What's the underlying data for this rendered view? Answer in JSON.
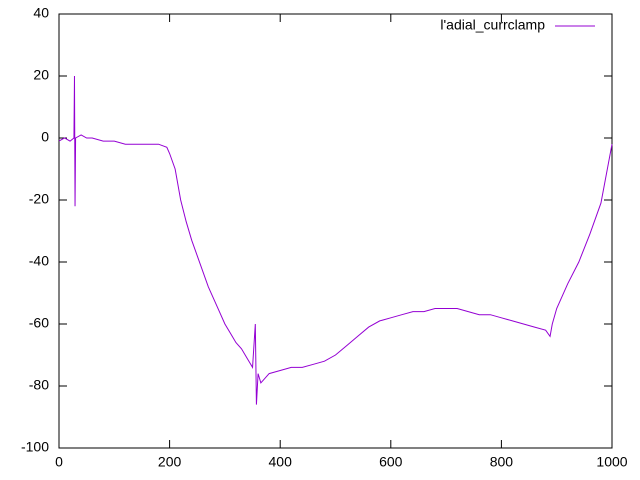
{
  "chart_data": {
    "type": "line",
    "x": [
      0,
      10,
      20,
      27,
      28,
      29,
      30,
      40,
      50,
      60,
      80,
      100,
      120,
      140,
      160,
      180,
      195,
      200,
      210,
      220,
      230,
      240,
      250,
      260,
      270,
      280,
      290,
      300,
      310,
      320,
      330,
      340,
      350,
      355,
      357,
      360,
      365,
      370,
      380,
      400,
      420,
      440,
      460,
      480,
      500,
      520,
      540,
      560,
      580,
      600,
      620,
      640,
      660,
      680,
      700,
      720,
      740,
      760,
      780,
      800,
      820,
      840,
      860,
      880,
      888,
      892,
      900,
      920,
      940,
      960,
      980,
      1000
    ],
    "series": [
      {
        "name": "l'adial_currclamp",
        "color": "#9400d3",
        "values": [
          -1,
          0,
          -1,
          0,
          20,
          -22,
          0,
          1,
          0,
          0,
          -1,
          -1,
          -2,
          -2,
          -2,
          -2,
          -3,
          -5,
          -10,
          -20,
          -27,
          -33,
          -38,
          -43,
          -48,
          -52,
          -56,
          -60,
          -63,
          -66,
          -68,
          -71,
          -74,
          -60,
          -86,
          -76,
          -79,
          -78,
          -76,
          -75,
          -74,
          -74,
          -73,
          -72,
          -70,
          -67,
          -64,
          -61,
          -59,
          -58,
          -57,
          -56,
          -56,
          -55,
          -55,
          -55,
          -56,
          -57,
          -57,
          -58,
          -59,
          -60,
          -61,
          -62,
          -64,
          -60,
          -55,
          -47,
          -40,
          -31,
          -21,
          -2
        ]
      }
    ],
    "xlim": [
      0,
      1000
    ],
    "xticks": [
      0,
      200,
      400,
      600,
      800,
      1000
    ],
    "ylim": [
      -100,
      40
    ],
    "yticks": [
      -100,
      -80,
      -60,
      -40,
      -20,
      0,
      20,
      40
    ],
    "legend": "top-right"
  }
}
